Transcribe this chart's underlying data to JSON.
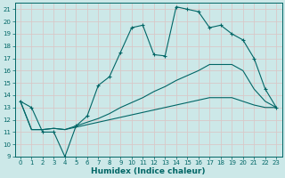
{
  "xlabel": "Humidex (Indice chaleur)",
  "bg_color": "#cce8e8",
  "grid_color": "#b0d0d0",
  "line_color": "#006666",
  "xlim": [
    -0.5,
    23.5
  ],
  "ylim": [
    9,
    21.5
  ],
  "xticks": [
    0,
    1,
    2,
    3,
    4,
    5,
    6,
    7,
    8,
    9,
    10,
    11,
    12,
    13,
    14,
    15,
    16,
    17,
    18,
    19,
    20,
    21,
    22,
    23
  ],
  "yticks": [
    9,
    10,
    11,
    12,
    13,
    14,
    15,
    16,
    17,
    18,
    19,
    20,
    21
  ],
  "series1_x": [
    0,
    1,
    2,
    3,
    4,
    5,
    6,
    7,
    8,
    9,
    10,
    11,
    12,
    13,
    14,
    15,
    16,
    17,
    18,
    19,
    20,
    21,
    22,
    23
  ],
  "series1_y": [
    13.5,
    13,
    11,
    11,
    9,
    11.5,
    12.3,
    14.8,
    15.5,
    17.5,
    19.5,
    19.7,
    17.3,
    17.2,
    21.2,
    21.0,
    20.8,
    19.5,
    19.7,
    19.0,
    18.5,
    17.0,
    14.5,
    13.0
  ],
  "series2_x": [
    0,
    1,
    2,
    3,
    4,
    5,
    6,
    7,
    8,
    9,
    10,
    11,
    12,
    13,
    14,
    15,
    16,
    17,
    18,
    19,
    20,
    21,
    22,
    23
  ],
  "series2_y": [
    13.5,
    11.2,
    11.2,
    11.3,
    11.2,
    11.5,
    11.8,
    12.1,
    12.5,
    13.0,
    13.4,
    13.8,
    14.3,
    14.7,
    15.2,
    15.6,
    16.0,
    16.5,
    16.5,
    16.5,
    16.0,
    14.5,
    13.5,
    13.0
  ],
  "series3_x": [
    0,
    1,
    2,
    3,
    4,
    5,
    6,
    7,
    8,
    9,
    10,
    11,
    12,
    13,
    14,
    15,
    16,
    17,
    18,
    19,
    20,
    21,
    22,
    23
  ],
  "series3_y": [
    13.5,
    11.2,
    11.2,
    11.3,
    11.2,
    11.4,
    11.6,
    11.8,
    12.0,
    12.2,
    12.4,
    12.6,
    12.8,
    13.0,
    13.2,
    13.4,
    13.6,
    13.8,
    13.8,
    13.8,
    13.5,
    13.2,
    13.0,
    13.0
  ]
}
